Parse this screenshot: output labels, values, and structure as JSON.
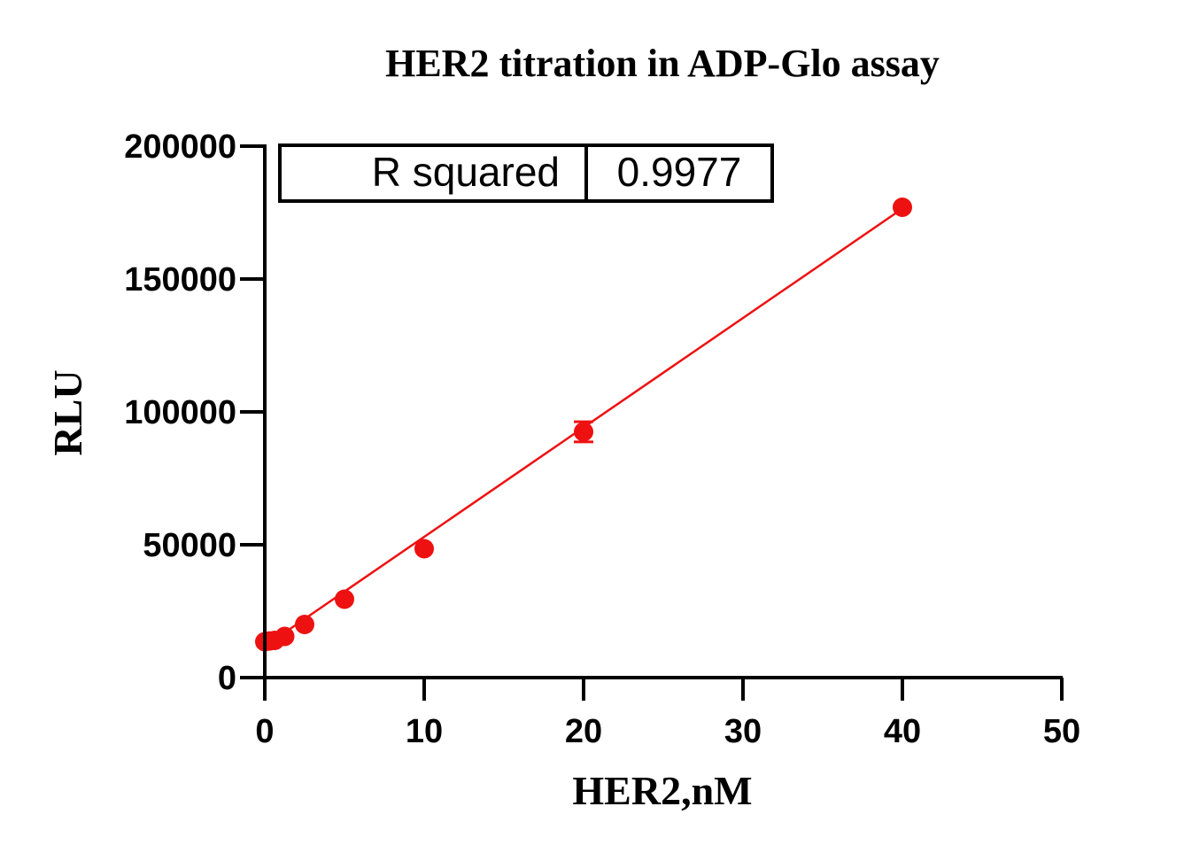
{
  "chart_data": {
    "type": "scatter",
    "title": "HER2 titration in ADP-Glo assay",
    "xlabel": "HER2,nM",
    "ylabel": "RLU",
    "xlim": [
      0,
      50
    ],
    "ylim": [
      0,
      200000
    ],
    "x_ticks": [
      "0",
      "10",
      "20",
      "30",
      "40",
      "50"
    ],
    "y_ticks": [
      "0",
      "50000",
      "100000",
      "150000",
      "200000"
    ],
    "x_tick_values": [
      0,
      10,
      20,
      30,
      40,
      50
    ],
    "y_tick_values": [
      0,
      50000,
      100000,
      150000,
      200000
    ],
    "series": [
      {
        "x": [
          0.0,
          0.3,
          0.625,
          1.25,
          2.5,
          5,
          10,
          20,
          40
        ],
        "y": [
          13500,
          13800,
          14000,
          15500,
          20000,
          29500,
          48500,
          92500,
          177000
        ],
        "error": [
          0,
          0,
          0,
          0,
          0,
          0,
          0,
          3800,
          0
        ]
      }
    ],
    "fit_line": {
      "x": [
        0,
        40
      ],
      "y": [
        11800,
        176500
      ]
    },
    "stats_table": {
      "label": "R squared",
      "value": "0.9977"
    },
    "colors": {
      "series": "#ee1111",
      "axes": "#000000"
    },
    "grid": false,
    "legend": "none"
  }
}
